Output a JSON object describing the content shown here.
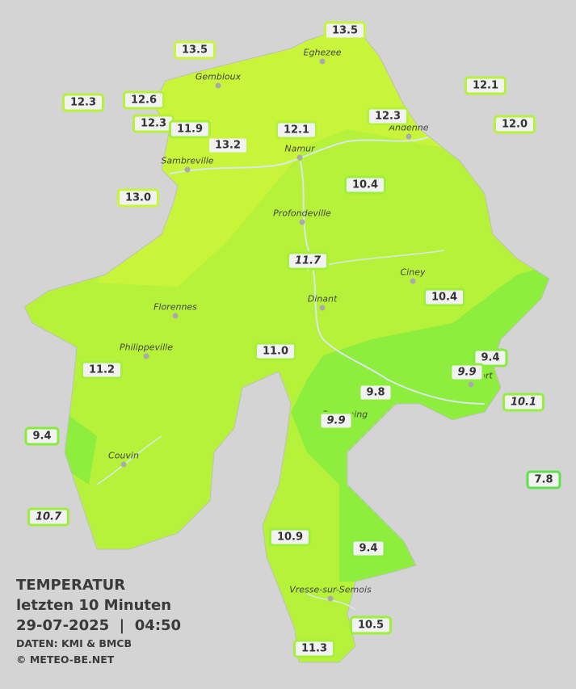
{
  "title": {
    "lines": [
      "TEMPERATUR",
      "letzten 10 Minuten",
      "29-07-2025  |  04:50"
    ],
    "source": "DATEN: KMI & BMCB",
    "copyright": "© METEO-BE.NET"
  },
  "cities": [
    "Eghezee",
    "Gembloux",
    "Andenne",
    "Namur",
    "Sambreville",
    "Profondeville",
    "Ciney",
    "Dinant",
    "Florennes",
    "Philippeville",
    "Couvin",
    "Vresse-sur-Semois",
    "Rochefort",
    "Beauraing"
  ],
  "stations": [
    {
      "label": "13.5",
      "italic": false,
      "color": "#c8f53a"
    },
    {
      "label": "13.5",
      "italic": false,
      "color": "#c8f53a"
    },
    {
      "label": "12.3",
      "italic": false,
      "color": "#b6f23a"
    },
    {
      "label": "12.6",
      "italic": false,
      "color": "#b6f23a"
    },
    {
      "label": "12.3",
      "italic": false,
      "color": "#b6f23a"
    },
    {
      "label": "11.9",
      "italic": false,
      "color": "#a6f03a"
    },
    {
      "label": "13.2",
      "italic": false,
      "color": "#c8f53a"
    },
    {
      "label": "12.1",
      "italic": false,
      "color": "#b6f23a"
    },
    {
      "label": "12.3",
      "italic": false,
      "color": "#b6f23a"
    },
    {
      "label": "12.1",
      "italic": false,
      "color": "#b6f23a"
    },
    {
      "label": "12.0",
      "italic": false,
      "color": "#b6f23a"
    },
    {
      "label": "13.0",
      "italic": false,
      "color": "#c8f53a"
    },
    {
      "label": "10.4",
      "italic": false,
      "color": "#9cf03c"
    },
    {
      "label": "11.7",
      "italic": true,
      "color": "#a6f03a"
    },
    {
      "label": "10.4",
      "italic": false,
      "color": "#9cf03c"
    },
    {
      "label": "11.0",
      "italic": false,
      "color": "#a6f03a"
    },
    {
      "label": "9.4",
      "italic": false,
      "color": "#86ec3e"
    },
    {
      "label": "9.9",
      "italic": true,
      "color": "#8eee3e"
    },
    {
      "label": "11.2",
      "italic": false,
      "color": "#a6f03a"
    },
    {
      "label": "9.8",
      "italic": false,
      "color": "#8eee3e"
    },
    {
      "label": "10.1",
      "italic": true,
      "color": "#94ee3e"
    },
    {
      "label": "9.9",
      "italic": true,
      "color": "#8eee3e"
    },
    {
      "label": "9.4",
      "italic": false,
      "color": "#86ec3e"
    },
    {
      "label": "7.8",
      "italic": false,
      "color": "#5ee24a"
    },
    {
      "label": "10.7",
      "italic": true,
      "color": "#9cf03c"
    },
    {
      "label": "10.9",
      "italic": false,
      "color": "#9cf03c"
    },
    {
      "label": "9.4",
      "italic": false,
      "color": "#86ec3e"
    },
    {
      "label": "10.5",
      "italic": false,
      "color": "#9cf03c"
    },
    {
      "label": "11.3",
      "italic": false,
      "color": "#a6f03a"
    }
  ]
}
